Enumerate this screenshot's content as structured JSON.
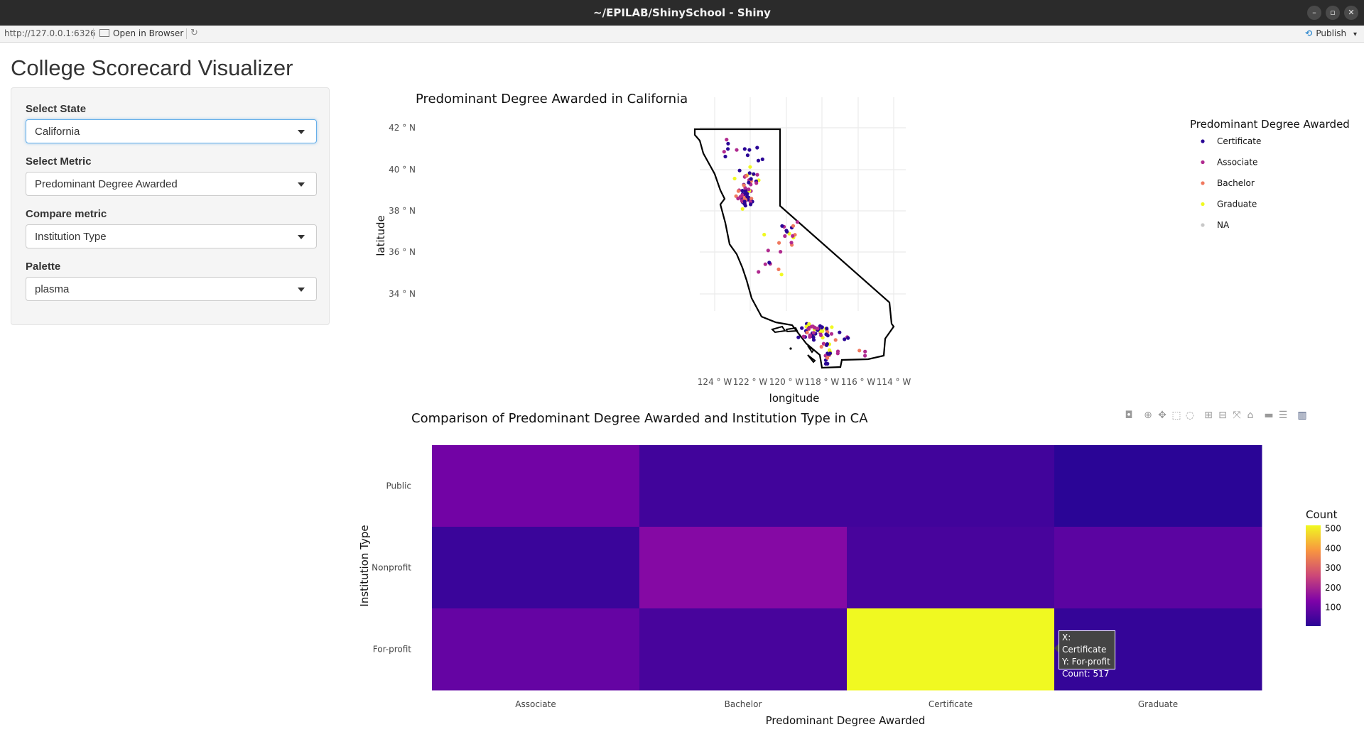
{
  "window": {
    "title": "~/EPILAB/ShinySchool - Shiny",
    "minimize": "–",
    "maximize": "▫",
    "close": "✕"
  },
  "toolbar": {
    "url": "http://127.0.0.1:6326",
    "open_in_browser": "Open in Browser",
    "refresh_icon": "↻",
    "publish": "Publish",
    "publish_icon": "⟲",
    "publish_caret": "▾"
  },
  "app": {
    "title": "College Scorecard Visualizer"
  },
  "sidebar": {
    "controls": [
      {
        "label": "Select State",
        "value": "California"
      },
      {
        "label": "Select Metric",
        "value": "Predominant Degree Awarded"
      },
      {
        "label": "Compare metric",
        "value": "Institution Type"
      },
      {
        "label": "Palette",
        "value": "plasma"
      }
    ]
  },
  "colors": {
    "Certificate": "#2a0596",
    "Associate": "#b02a8f",
    "Bachelor": "#f0795f",
    "Graduate": "#f0f921",
    "NA": "#c8c8c8"
  },
  "map_plot": {
    "title": "Predominant Degree Awarded in California",
    "xlabel": "longitude",
    "ylabel": "latitude",
    "x_ticks": [
      "124 ° W",
      "122 ° W",
      "120 ° W",
      "118 ° W",
      "116 ° W",
      "114 ° W"
    ],
    "y_ticks": [
      "42 ° N",
      "40 ° N",
      "38 ° N",
      "36 ° N",
      "34 ° N"
    ],
    "legend_title": "Predominant Degree Awarded",
    "legend": [
      "Certificate",
      "Associate",
      "Bachelor",
      "Graduate",
      "NA"
    ]
  },
  "chart_data": {
    "type": "heatmap",
    "title": "Comparison of Predominant Degree Awarded and Institution Type in CA",
    "xlabel": "Predominant Degree Awarded",
    "ylabel": "Institution Type",
    "x": [
      "Associate",
      "Bachelor",
      "Certificate",
      "Graduate"
    ],
    "y": [
      "Public",
      "Nonprofit",
      "For-profit"
    ],
    "z": [
      [
        115,
        40,
        40,
        5
      ],
      [
        30,
        145,
        50,
        80
      ],
      [
        95,
        50,
        517,
        20
      ]
    ],
    "colorbar_title": "Count",
    "colorbar_ticks": [
      500,
      400,
      300,
      200,
      100
    ],
    "zrange": [
      5,
      517
    ],
    "palette": "plasma"
  },
  "modebar": {
    "icons": [
      "camera-icon",
      "zoom-icon",
      "pan-icon",
      "box-select-icon",
      "lasso-icon",
      "zoom-in-icon",
      "zoom-out-icon",
      "autoscale-icon",
      "reset-axes-icon",
      "spike-lines-icon",
      "compare-hover-icon",
      "plotly-logo-icon"
    ]
  },
  "tooltip": {
    "x": "X: Certificate",
    "y": "Y: For-profit",
    "count": "Count: 517"
  }
}
